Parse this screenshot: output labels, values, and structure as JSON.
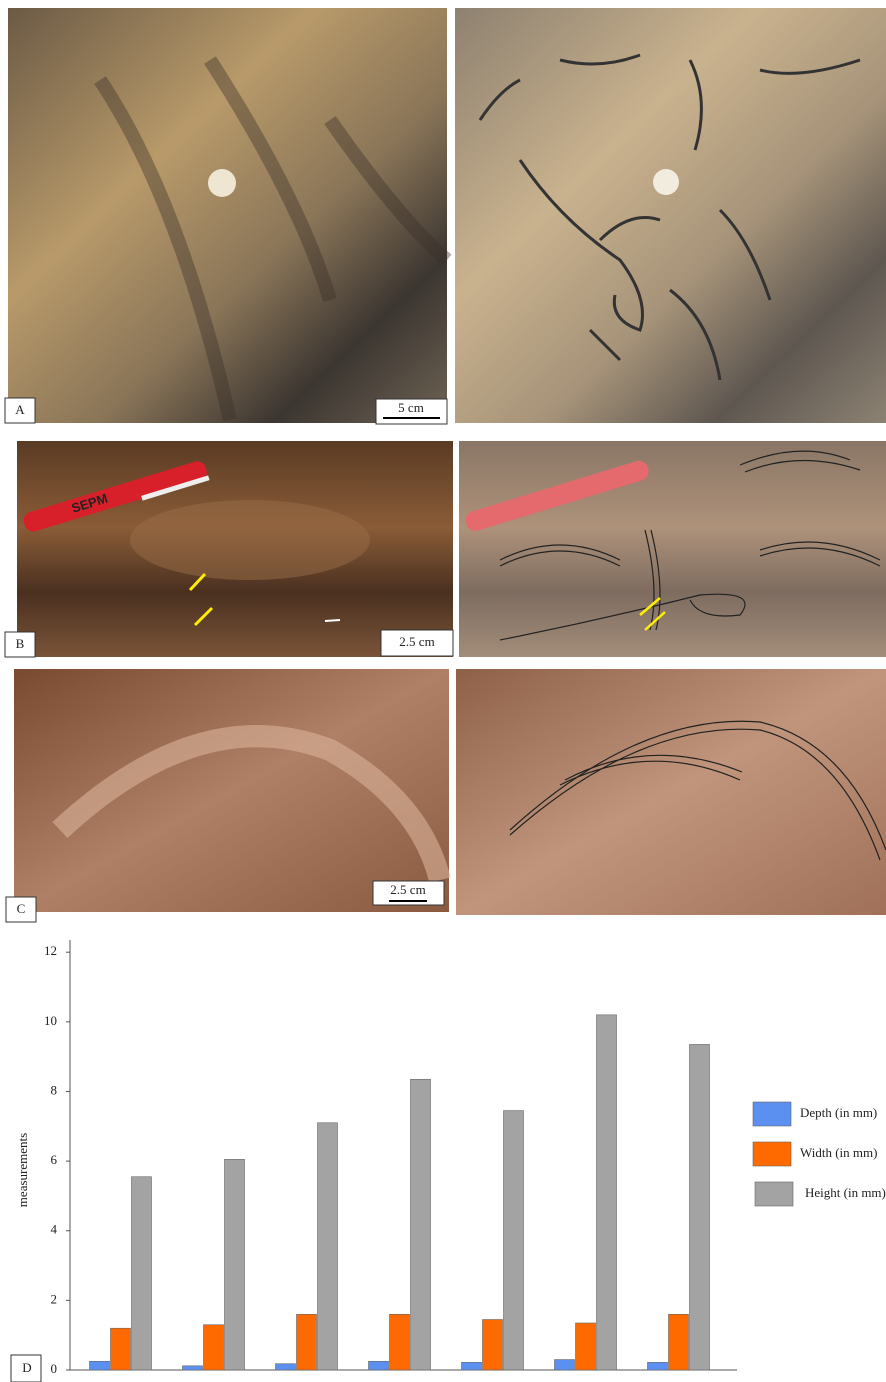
{
  "panels": [
    {
      "label": "A",
      "scale": "5 cm"
    },
    {
      "label": "B",
      "scale": "2.5 cm",
      "pen_text": "SEPM"
    },
    {
      "label": "C",
      "scale": "2.5 cm"
    }
  ],
  "chart_data": {
    "type": "bar",
    "panel_label": "D",
    "y_label": "measurements",
    "categories": [
      null,
      null,
      null,
      null,
      null,
      null,
      null
    ],
    "series": [
      {
        "name": "Depth (in mm)",
        "color": "#5b8ff0",
        "values": [
          0.25,
          0.12,
          0.18,
          0.25,
          0.22,
          0.3,
          0.22
        ]
      },
      {
        "name": "Width (in mm)",
        "color": "#ff6a00",
        "values": [
          1.2,
          1.3,
          1.6,
          1.6,
          1.45,
          1.35,
          1.6
        ]
      },
      {
        "name": "Height (in mm)",
        "color": "#a3a3a3",
        "values": [
          5.55,
          6.05,
          7.1,
          8.35,
          7.45,
          10.2,
          9.35
        ]
      }
    ],
    "ylim": [
      0,
      12.35
    ],
    "yticks": [
      0,
      2,
      4,
      6,
      8,
      10,
      12
    ],
    "grid": false,
    "legend": "right"
  }
}
